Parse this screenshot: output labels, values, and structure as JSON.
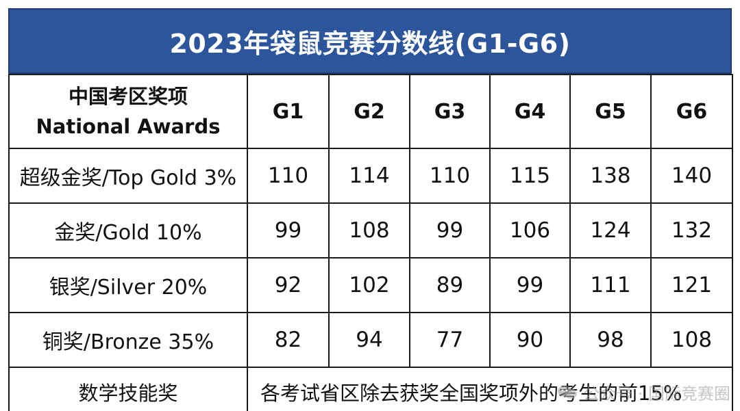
{
  "title": "2023年袋鼠竞赛分数线(G1-G6)",
  "header": {
    "award_label_cn": "中国考区奖项",
    "award_label_en": "National Awards",
    "grades": [
      "G1",
      "G2",
      "G3",
      "G4",
      "G5",
      "G6"
    ]
  },
  "rows": [
    {
      "award": "超级金奖/Top Gold 3%",
      "scores": [
        "110",
        "114",
        "110",
        "115",
        "138",
        "140"
      ]
    },
    {
      "award": "金奖/Gold 10%",
      "scores": [
        "99",
        "108",
        "99",
        "106",
        "124",
        "132"
      ]
    },
    {
      "award": "银奖/Silver 20%",
      "scores": [
        "92",
        "102",
        "89",
        "99",
        "111",
        "121"
      ]
    },
    {
      "award": "铜奖/Bronze 35%",
      "scores": [
        "82",
        "94",
        "77",
        "90",
        "98",
        "108"
      ]
    }
  ],
  "math_skill_award": {
    "label": "数学技能奖",
    "description": "各考试省区除去获奖全国奖项外的考生的前15%"
  },
  "watermark": {
    "text": "公众号 · 国际竞赛圈",
    "icon": "wechat-icon"
  },
  "colors": {
    "title_bg": "#2c559b",
    "title_text": "#ffffff",
    "border": "#1a1a1a"
  }
}
